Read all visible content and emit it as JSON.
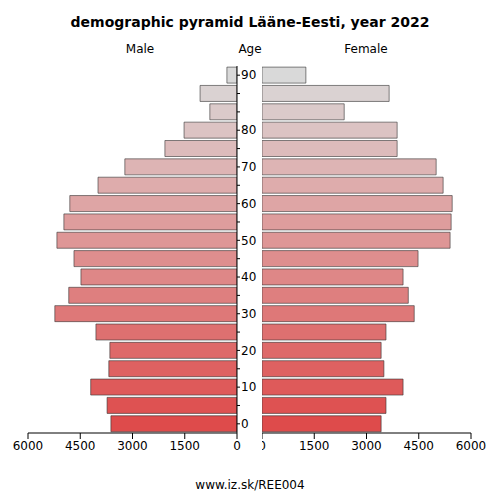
{
  "chart_data": {
    "type": "bar",
    "orientation": "horizontal",
    "title": "demographic pyramid Lääne-Eesti, year 2022",
    "y_label": "Age",
    "source": "www.iz.sk/REE004",
    "categories": [
      "0",
      null,
      "10",
      null,
      "20",
      null,
      "30",
      null,
      "40",
      null,
      "50",
      null,
      "60",
      null,
      "70",
      null,
      "80",
      null,
      null,
      "90"
    ],
    "series": [
      {
        "name": "Male",
        "values": [
          3620,
          3730,
          4200,
          3680,
          3650,
          4050,
          5230,
          4830,
          4480,
          4680,
          5170,
          4970,
          4800,
          3990,
          3220,
          2070,
          1520,
          780,
          1060,
          290
        ]
      },
      {
        "name": "Female",
        "values": [
          3420,
          3560,
          4050,
          3500,
          3420,
          3560,
          4370,
          4200,
          4050,
          4480,
          5400,
          5430,
          5460,
          5200,
          5000,
          3880,
          3880,
          2360,
          3650,
          1260
        ]
      }
    ],
    "xlim": [
      0,
      6000
    ],
    "xticks": [
      0,
      1500,
      3000,
      4500,
      6000
    ],
    "colors": [
      "#de4b4b",
      "#de5252",
      "#de5a5a",
      "#de6161",
      "#de6969",
      "#de7070",
      "#de7878",
      "#de7f7f",
      "#de8787",
      "#de8e8e",
      "#de9696",
      "#de9d9d",
      "#dea5a5",
      "#deacac",
      "#ddb4b4",
      "#ddbbbb",
      "#dcc3c3",
      "#dbcaca",
      "#dad2d2",
      "#d9d9d9"
    ],
    "grid": false
  }
}
